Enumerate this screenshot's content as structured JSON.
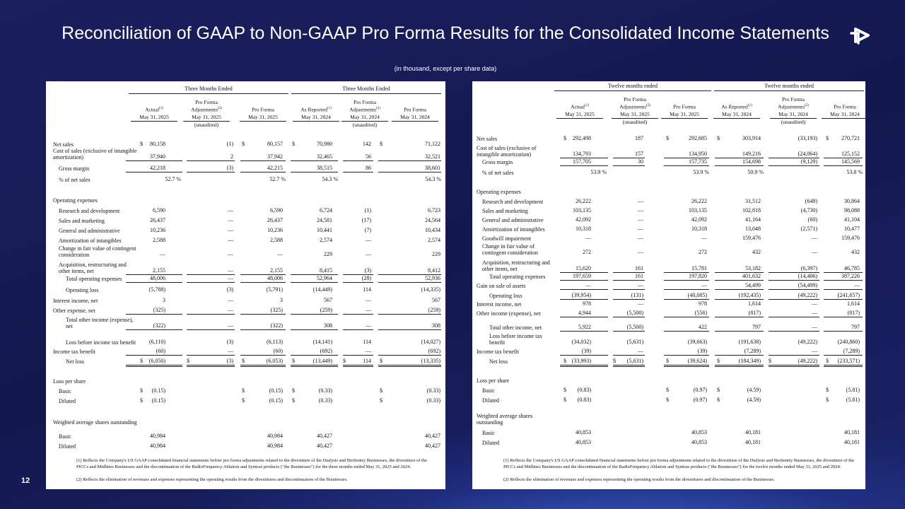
{
  "slide": {
    "title": "Reconciliation of GAAP to Non-GAAP Pro Forma Results for the Consolidated Income Statements",
    "subtitle": "(in thousand, except per share data)",
    "page_number": "12",
    "logo": "company-logo"
  },
  "tables": [
    {
      "group_headers": [
        "Three Months Ended",
        "Three Months Ended"
      ],
      "unaudited": [
        "(unaudited)",
        "(unaudited)"
      ],
      "columns": [
        {
          "title": "Actual",
          "note": "(1)",
          "date": "May 31, 2025"
        },
        {
          "title": "Pro Forma Adjustments",
          "note": "(2)",
          "date": "May 31, 2025"
        },
        {
          "title": "Pro Forma",
          "note": "",
          "date": "May 31, 2025"
        },
        {
          "title": "As Reported",
          "note": "(1)",
          "date": "May 31, 2024"
        },
        {
          "title": "Pro Forma Adjustments",
          "note": "(2)",
          "date": "May 31, 2024"
        },
        {
          "title": "Pro Forma",
          "note": "",
          "date": "May 31, 2024"
        }
      ],
      "rows": [
        {
          "label": "Net sales",
          "indent": 0,
          "values": [
            "80,158",
            "(1)",
            "80,157",
            "70,980",
            "142",
            "71,122"
          ],
          "dollars": [
            1,
            0,
            1,
            1,
            0,
            1
          ]
        },
        {
          "label": "Cost of sales (exclusive of intangible amortization)",
          "indent": 0,
          "values": [
            "37,940",
            "2",
            "37,942",
            "32,465",
            "56",
            "32,521"
          ],
          "rule": "single"
        },
        {
          "label": "Gross margin",
          "indent": 1,
          "values": [
            "42,218",
            "(3)",
            "42,215",
            "38,515",
            "86",
            "38,601"
          ],
          "rule": "single"
        },
        {
          "label": "% of net sales",
          "indent": 1,
          "values": [
            "52.7 %",
            "",
            "52.7 %",
            "54.3 %",
            "",
            "54.3 %"
          ],
          "percent": true
        },
        {
          "label": "Operating expenses",
          "indent": 0,
          "values": []
        },
        {
          "label": "Research and development",
          "indent": 1,
          "values": [
            "6,590",
            "—",
            "6,590",
            "6,724",
            "(1)",
            "6,723"
          ]
        },
        {
          "label": "Sales and marketing",
          "indent": 1,
          "values": [
            "26,437",
            "—",
            "26,437",
            "24,581",
            "(17)",
            "24,564"
          ]
        },
        {
          "label": "General and administrative",
          "indent": 1,
          "values": [
            "10,236",
            "—",
            "10,236",
            "10,441",
            "(7)",
            "10,434"
          ]
        },
        {
          "label": "Amortization of intangibles",
          "indent": 1,
          "values": [
            "2,588",
            "—",
            "2,588",
            "2,574",
            "—",
            "2,574"
          ]
        },
        {
          "label": "Change in fair value of contingent consideration",
          "indent": 1,
          "values": [
            "—",
            "—",
            "—",
            "229",
            "—",
            "229"
          ]
        },
        {
          "label": "Acquisition, restructuring and other items, net",
          "indent": 1,
          "values": [
            "2,155",
            "—",
            "2,155",
            "8,415",
            "(3)",
            "8,412"
          ],
          "rule": "single"
        },
        {
          "label": "Total operating expenses",
          "indent": 2,
          "values": [
            "48,006",
            "—",
            "48,006",
            "52,964",
            "(28)",
            "52,936"
          ],
          "rule": "single"
        },
        {
          "label": "Operating loss",
          "indent": 2,
          "values": [
            "(5,788)",
            "(3)",
            "(5,791)",
            "(14,449)",
            "114",
            "(14,335)"
          ]
        },
        {
          "label": "Interest income, net",
          "indent": 0,
          "values": [
            "3",
            "—",
            "3",
            "567",
            "—",
            "567"
          ]
        },
        {
          "label": "Other expense, net",
          "indent": 0,
          "values": [
            "(325)",
            "—",
            "(325)",
            "(259)",
            "—",
            "(259)"
          ],
          "rule": "single"
        },
        {
          "label": "Total other income (expense), net",
          "indent": 2,
          "values": [
            "(322)",
            "—",
            "(322)",
            "308",
            "—",
            "308"
          ],
          "rule": "single"
        },
        {
          "label": "Loss before income tax benefit",
          "indent": 2,
          "values": [
            "(6,110)",
            "(3)",
            "(6,113)",
            "(14,141)",
            "114",
            "(14,027)"
          ]
        },
        {
          "label": "Income tax benefit",
          "indent": 0,
          "values": [
            "(60)",
            "—",
            "(60)",
            "(692)",
            "—",
            "(692)"
          ],
          "rule": "single"
        },
        {
          "label": "Net loss",
          "indent": 2,
          "values": [
            "(6,050)",
            "(3)",
            "(6,053)",
            "(13,449)",
            "114",
            "(13,335)"
          ],
          "dollars": [
            1,
            1,
            1,
            1,
            1,
            1
          ],
          "rule": "double"
        },
        {
          "label": "Loss per share",
          "indent": 0,
          "values": []
        },
        {
          "label": "Basic",
          "indent": 1,
          "values": [
            "(0.15)",
            "",
            "(0.15)",
            "(0.33)",
            "",
            "(0.33)"
          ],
          "dollars": [
            1,
            0,
            1,
            1,
            0,
            1
          ]
        },
        {
          "label": "Diluted",
          "indent": 1,
          "values": [
            "(0.15)",
            "",
            "(0.15)",
            "(0.33)",
            "",
            "(0.33)"
          ],
          "dollars": [
            1,
            0,
            1,
            1,
            0,
            1
          ]
        },
        {
          "label": "Weighted average shares outstanding",
          "indent": 0,
          "values": []
        },
        {
          "label": "Basic",
          "indent": 1,
          "values": [
            "40,984",
            "",
            "40,984",
            "40,427",
            "",
            "40,427"
          ]
        },
        {
          "label": "Diluted",
          "indent": 1,
          "values": [
            "40,984",
            "",
            "40,984",
            "40,427",
            "",
            "40,427"
          ]
        }
      ],
      "footnotes": [
        "(1)  Reflects the Company's US GAAP consolidated financial statements before pro forma adjustments related to the divestiture of the Dialysis and BioSentry Businesses, the divestiture of the PICCs and Midlines Businesses and the discontinuation of the RadioFrequency Ablation and Syntrax products (\"the Businesses\") for the three months ended May 31, 2025 and 2024.",
        "(2) Reflects the elimination of revenues and expenses representing the operating results from the divestitures and discontinuation of the Businesses."
      ]
    },
    {
      "group_headers": [
        "Twelve months ended",
        "Twelve months ended"
      ],
      "unaudited": [
        "(unaudited)",
        "(unaudited)"
      ],
      "columns": [
        {
          "title": "Actual",
          "note": "(1)",
          "date": "May 31, 2025"
        },
        {
          "title": "Pro Forma Adjustments",
          "note": "(2)",
          "date": "May 31, 2025"
        },
        {
          "title": "Pro Forma",
          "note": "",
          "date": "May 31, 2025"
        },
        {
          "title": "As Reported",
          "note": "(1)",
          "date": "May 31, 2024"
        },
        {
          "title": "Pro Forma Adjustments",
          "note": "(2)",
          "date": "May 31, 2024"
        },
        {
          "title": "Pro Forma",
          "note": "",
          "date": "May 31, 2024"
        }
      ],
      "rows": [
        {
          "label": "Net sales",
          "indent": 0,
          "values": [
            "292,498",
            "187",
            "292,685",
            "303,914",
            "(33,193)",
            "270,721"
          ],
          "dollars": [
            1,
            0,
            1,
            1,
            0,
            1
          ]
        },
        {
          "label": "Cost of sales (exclusive of intangible amortization)",
          "indent": 0,
          "values": [
            "134,793",
            "157",
            "134,950",
            "149,216",
            "(24,064)",
            "125,152"
          ],
          "rule": "single"
        },
        {
          "label": "Gross margin",
          "indent": 1,
          "values": [
            "157,705",
            "30",
            "157,735",
            "154,698",
            "(9,129)",
            "145,569"
          ],
          "rule": "single"
        },
        {
          "label": "% of net sales",
          "indent": 1,
          "values": [
            "53.9 %",
            "",
            "53.9 %",
            "50.9 %",
            "",
            "53.8 %"
          ],
          "percent": true
        },
        {
          "label": "Operating expenses",
          "indent": 0,
          "values": []
        },
        {
          "label": "Research and development",
          "indent": 1,
          "values": [
            "26,222",
            "—",
            "26,222",
            "31,512",
            "(648)",
            "30,864"
          ]
        },
        {
          "label": "Sales and marketing",
          "indent": 1,
          "values": [
            "103,135",
            "—",
            "103,135",
            "102,818",
            "(4,730)",
            "98,088"
          ]
        },
        {
          "label": "General and administrative",
          "indent": 1,
          "values": [
            "42,092",
            "—",
            "42,092",
            "41,164",
            "(60)",
            "41,104"
          ]
        },
        {
          "label": "Amortization of intangibles",
          "indent": 1,
          "values": [
            "10,318",
            "—",
            "10,318",
            "13,048",
            "(2,571)",
            "10,477"
          ]
        },
        {
          "label": "Goodwill impairment",
          "indent": 1,
          "values": [
            "—",
            "—",
            "—",
            "159,476",
            "—",
            "159,476"
          ]
        },
        {
          "label": "Change in fair value of contingent consideration",
          "indent": 1,
          "values": [
            "272",
            "—",
            "272",
            "432",
            "—",
            "432"
          ]
        },
        {
          "label": "Acquisition, restructuring and other items, net",
          "indent": 1,
          "values": [
            "15,620",
            "161",
            "15,781",
            "53,182",
            "(6,397)",
            "46,785"
          ],
          "rule": "single"
        },
        {
          "label": "Total operating expenses",
          "indent": 2,
          "values": [
            "197,659",
            "161",
            "197,820",
            "401,632",
            "(14,406)",
            "387,226"
          ],
          "rule": "single"
        },
        {
          "label": "Gain on sale of assets",
          "indent": 0,
          "values": [
            "—",
            "—",
            "—",
            "54,499",
            "(54,499)",
            "—"
          ],
          "rule": "single"
        },
        {
          "label": "Operating loss",
          "indent": 2,
          "values": [
            "(39,954)",
            "(131)",
            "(40,085)",
            "(192,435)",
            "(49,222)",
            "(241,657)"
          ],
          "rule": "single"
        },
        {
          "label": "Interest income, net",
          "indent": 0,
          "values": [
            "978",
            "—",
            "978",
            "1,614",
            "—",
            "1,614"
          ]
        },
        {
          "label": "Other income (expense), net",
          "indent": 0,
          "values": [
            "4,944",
            "(5,500)",
            "(556)",
            "(817)",
            "—",
            "(817)"
          ],
          "rule": "single"
        },
        {
          "label": "Total other income, net",
          "indent": 2,
          "values": [
            "5,922",
            "(5,500)",
            "422",
            "797",
            "—",
            "797"
          ],
          "rule": "single"
        },
        {
          "label": "Loss before income tax benefit",
          "indent": 2,
          "values": [
            "(34,032)",
            "(5,631)",
            "(39,663)",
            "(191,638)",
            "(49,222)",
            "(240,860)"
          ]
        },
        {
          "label": "Income tax benefit",
          "indent": 0,
          "values": [
            "(39)",
            "—",
            "(39)",
            "(7,289)",
            "—",
            "(7,289)"
          ],
          "rule": "single"
        },
        {
          "label": "Net loss",
          "indent": 2,
          "values": [
            "(33,993)",
            "(5,631)",
            "(39,624)",
            "(184,349)",
            "(49,222)",
            "(233,571)"
          ],
          "dollars": [
            1,
            1,
            1,
            1,
            1,
            1
          ],
          "rule": "double"
        },
        {
          "label": "Loss per share",
          "indent": 0,
          "values": []
        },
        {
          "label": "Basic",
          "indent": 1,
          "values": [
            "(0.83)",
            "",
            "(0.97)",
            "(4.59)",
            "",
            "(5.81)"
          ],
          "dollars": [
            1,
            0,
            1,
            1,
            0,
            1
          ]
        },
        {
          "label": "Diluted",
          "indent": 1,
          "values": [
            "(0.83)",
            "",
            "(0.97)",
            "(4.59)",
            "",
            "(5.81)"
          ],
          "dollars": [
            1,
            0,
            1,
            1,
            0,
            1
          ]
        },
        {
          "label": "Weighted average shares outstanding",
          "indent": 0,
          "values": []
        },
        {
          "label": "Basic",
          "indent": 1,
          "values": [
            "40,853",
            "",
            "40,853",
            "40,181",
            "",
            "40,181"
          ]
        },
        {
          "label": "Diluted",
          "indent": 1,
          "values": [
            "40,853",
            "",
            "40,853",
            "40,181",
            "",
            "40,181"
          ]
        }
      ],
      "footnotes": [
        "(1)  Reflects the Company's US GAAP consolidated financial statements before pro forma adjustments related to the divestiture of the Dialysis and BioSentry Businesses, the divestiture of the PICCs and Midlines Businesses and the discontinuation of the RadioFrequency Ablation and Syntrax products (\"the Businesses\") for the twelve months ended May 31, 2025 and 2024.",
        "(2) Reflects the elimination of revenues and expenses representing the operating results from the divestitures and discontinuation of the Businesses."
      ]
    }
  ]
}
